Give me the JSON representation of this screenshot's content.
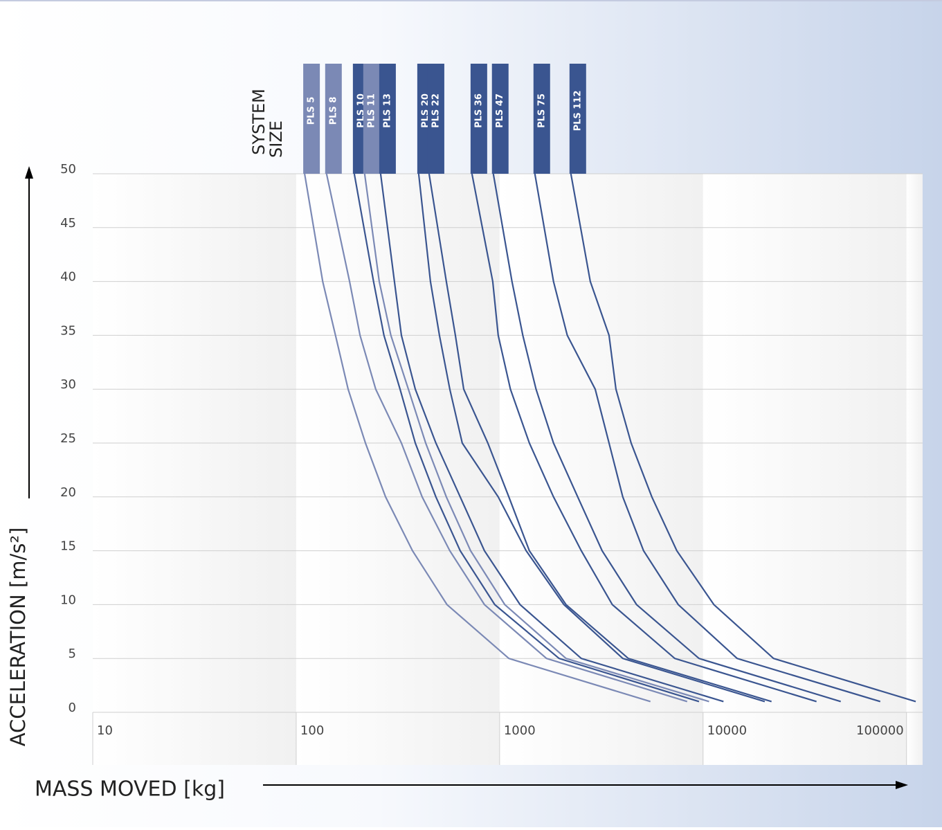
{
  "chart_data": {
    "type": "line",
    "y_label": "ACCELERATION [m/s²]",
    "x_label": "MASS MOVED [kg]",
    "legend_title": [
      "SYSTEM",
      "SIZE"
    ],
    "xscale": "log",
    "xlim": [
      10,
      120000
    ],
    "xticks": [
      10,
      100,
      1000,
      10000,
      100000
    ],
    "ylim": [
      0,
      50
    ],
    "yticks": [
      0,
      5,
      10,
      15,
      20,
      25,
      30,
      35,
      40,
      45,
      50
    ],
    "grid": true,
    "series": [
      {
        "name": "PLS 5",
        "color": "#7b89b5",
        "x": [
          110,
          135,
          156,
          180,
          219,
          275,
          373,
          551,
          1110,
          5510
        ],
        "values": [
          50,
          40,
          35,
          30,
          25,
          20,
          15,
          10,
          5,
          1
        ]
      },
      {
        "name": "PLS 8",
        "color": "#7b89b5",
        "x": [
          141,
          183,
          206,
          246,
          329,
          416,
          569,
          842,
          1700,
          8350
        ],
        "values": [
          50,
          40,
          35,
          30,
          25,
          20,
          15,
          10,
          5,
          1
        ]
      },
      {
        "name": "PLS 10",
        "color": "#3a5590",
        "x": [
          193,
          240,
          270,
          324,
          385,
          486,
          640,
          946,
          1960,
          9550
        ],
        "values": [
          50,
          40,
          35,
          30,
          25,
          20,
          15,
          10,
          5,
          1
        ]
      },
      {
        "name": "PLS 11",
        "color": "#7b89b5",
        "x": [
          217,
          256,
          292,
          356,
          433,
          547,
          720,
          1060,
          2120,
          10700
        ],
        "values": [
          50,
          40,
          35,
          30,
          25,
          20,
          15,
          10,
          5,
          1
        ]
      },
      {
        "name": "PLS 13",
        "color": "#3a5590",
        "x": [
          260,
          304,
          329,
          385,
          486,
          640,
          842,
          1260,
          2520,
          12600
        ],
        "values": [
          50,
          40,
          35,
          30,
          25,
          20,
          15,
          10,
          5,
          1
        ]
      },
      {
        "name": "PLS 20",
        "color": "#3a5590",
        "x": [
          400,
          457,
          506,
          569,
          655,
          984,
          1350,
          2070,
          4030,
          20100
        ],
        "values": [
          50,
          40,
          35,
          30,
          25,
          20,
          15,
          10,
          5,
          1
        ]
      },
      {
        "name": "PLS 22",
        "color": "#3a5590",
        "x": [
          450,
          547,
          606,
          666,
          875,
          1110,
          1400,
          2120,
          4290,
          21700
        ],
        "values": [
          50,
          40,
          35,
          30,
          25,
          20,
          15,
          10,
          5,
          1
        ]
      },
      {
        "name": "PLS 36",
        "color": "#3a5590",
        "x": [
          731,
          925,
          984,
          1130,
          1400,
          1840,
          2520,
          3580,
          7260,
          36100
        ],
        "values": [
          50,
          40,
          35,
          30,
          25,
          20,
          15,
          10,
          5,
          1
        ]
      },
      {
        "name": "PLS 47",
        "color": "#3a5590",
        "x": [
          931,
          1150,
          1300,
          1510,
          1840,
          2420,
          3190,
          4710,
          9550,
          47500
        ],
        "values": [
          50,
          40,
          35,
          30,
          25,
          20,
          15,
          10,
          5,
          1
        ]
      },
      {
        "name": "PLS 75",
        "color": "#3a5590",
        "x": [
          1490,
          1840,
          2150,
          2950,
          3450,
          4030,
          5100,
          7550,
          14700,
          74300
        ],
        "values": [
          50,
          40,
          35,
          30,
          25,
          20,
          15,
          10,
          5,
          1
        ]
      },
      {
        "name": "PLS 112",
        "color": "#3a5590",
        "x": [
          2240,
          2790,
          3450,
          3730,
          4430,
          5600,
          7430,
          11300,
          22200,
          111000
        ],
        "values": [
          50,
          40,
          35,
          30,
          25,
          20,
          15,
          10,
          5,
          1
        ]
      }
    ]
  }
}
